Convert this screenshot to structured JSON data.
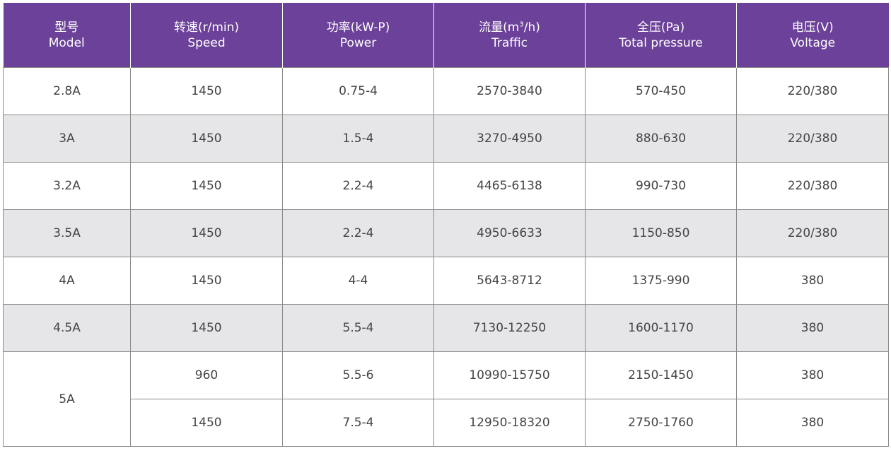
{
  "headers": [
    {
      "cn": "型号",
      "en": "Model"
    },
    {
      "cn": "转速(r/min)",
      "en": "Speed"
    },
    {
      "cn": "功率(kW-P)",
      "en": "Power"
    },
    {
      "cn_pre": "流量(m",
      "cn_sup": "3",
      "cn_post": "/h)",
      "en": "Traffic"
    },
    {
      "cn": "全压(Pa)",
      "en": "Total pressure"
    },
    {
      "cn": "电压(V)",
      "en": "Voltage"
    }
  ],
  "rows": [
    {
      "model": "2.8A",
      "speed": "1450",
      "power": "0.75-4",
      "traffic": "2570-3840",
      "pressure": "570-450",
      "voltage": "220/380"
    },
    {
      "model": "3A",
      "speed": "1450",
      "power": "1.5-4",
      "traffic": "3270-4950",
      "pressure": "880-630",
      "voltage": "220/380"
    },
    {
      "model": "3.2A",
      "speed": "1450",
      "power": "2.2-4",
      "traffic": "4465-6138",
      "pressure": "990-730",
      "voltage": "220/380"
    },
    {
      "model": "3.5A",
      "speed": "1450",
      "power": "2.2-4",
      "traffic": "4950-6633",
      "pressure": "1150-850",
      "voltage": "220/380"
    },
    {
      "model": "4A",
      "speed": "1450",
      "power": "4-4",
      "traffic": "5643-8712",
      "pressure": "1375-990",
      "voltage": "380"
    },
    {
      "model": "4.5A",
      "speed": "1450",
      "power": "5.5-4",
      "traffic": "7130-12250",
      "pressure": "1600-1170",
      "voltage": "380"
    },
    {
      "model": "5A",
      "speed": "960",
      "power": "5.5-6",
      "traffic": "10990-15750",
      "pressure": "2150-1450",
      "voltage": "380"
    },
    {
      "speed": "1450",
      "power": "7.5-4",
      "traffic": "12950-18320",
      "pressure": "2750-1760",
      "voltage": "380"
    }
  ],
  "colors": {
    "header_bg": "#6b4199",
    "row_shade": "#e6e6e8",
    "border": "#8a8a8a"
  }
}
